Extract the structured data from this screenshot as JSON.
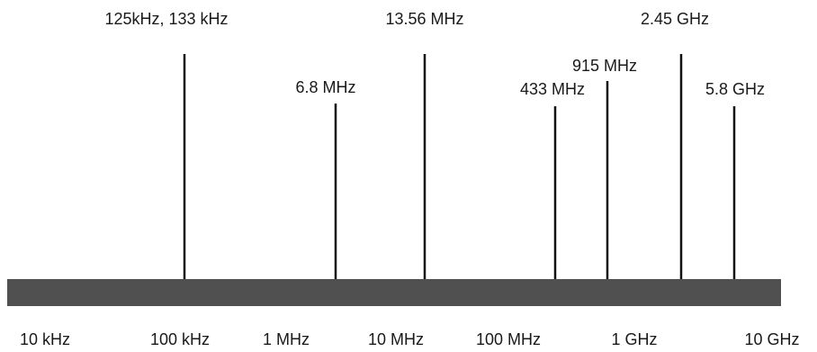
{
  "markers": [
    {
      "label": "125kHz, 133 kHz"
    },
    {
      "label": "6.8 MHz"
    },
    {
      "label": "13.56 MHz"
    },
    {
      "label": "433 MHz"
    },
    {
      "label": "915 MHz"
    },
    {
      "label": "2.45 GHz"
    },
    {
      "label": "5.8 GHz"
    }
  ],
  "axis_labels": [
    "10 kHz",
    "100 kHz",
    "1 MHz",
    "10 MHz",
    "100 MHz",
    "1 GHz",
    "10 GHz"
  ]
}
